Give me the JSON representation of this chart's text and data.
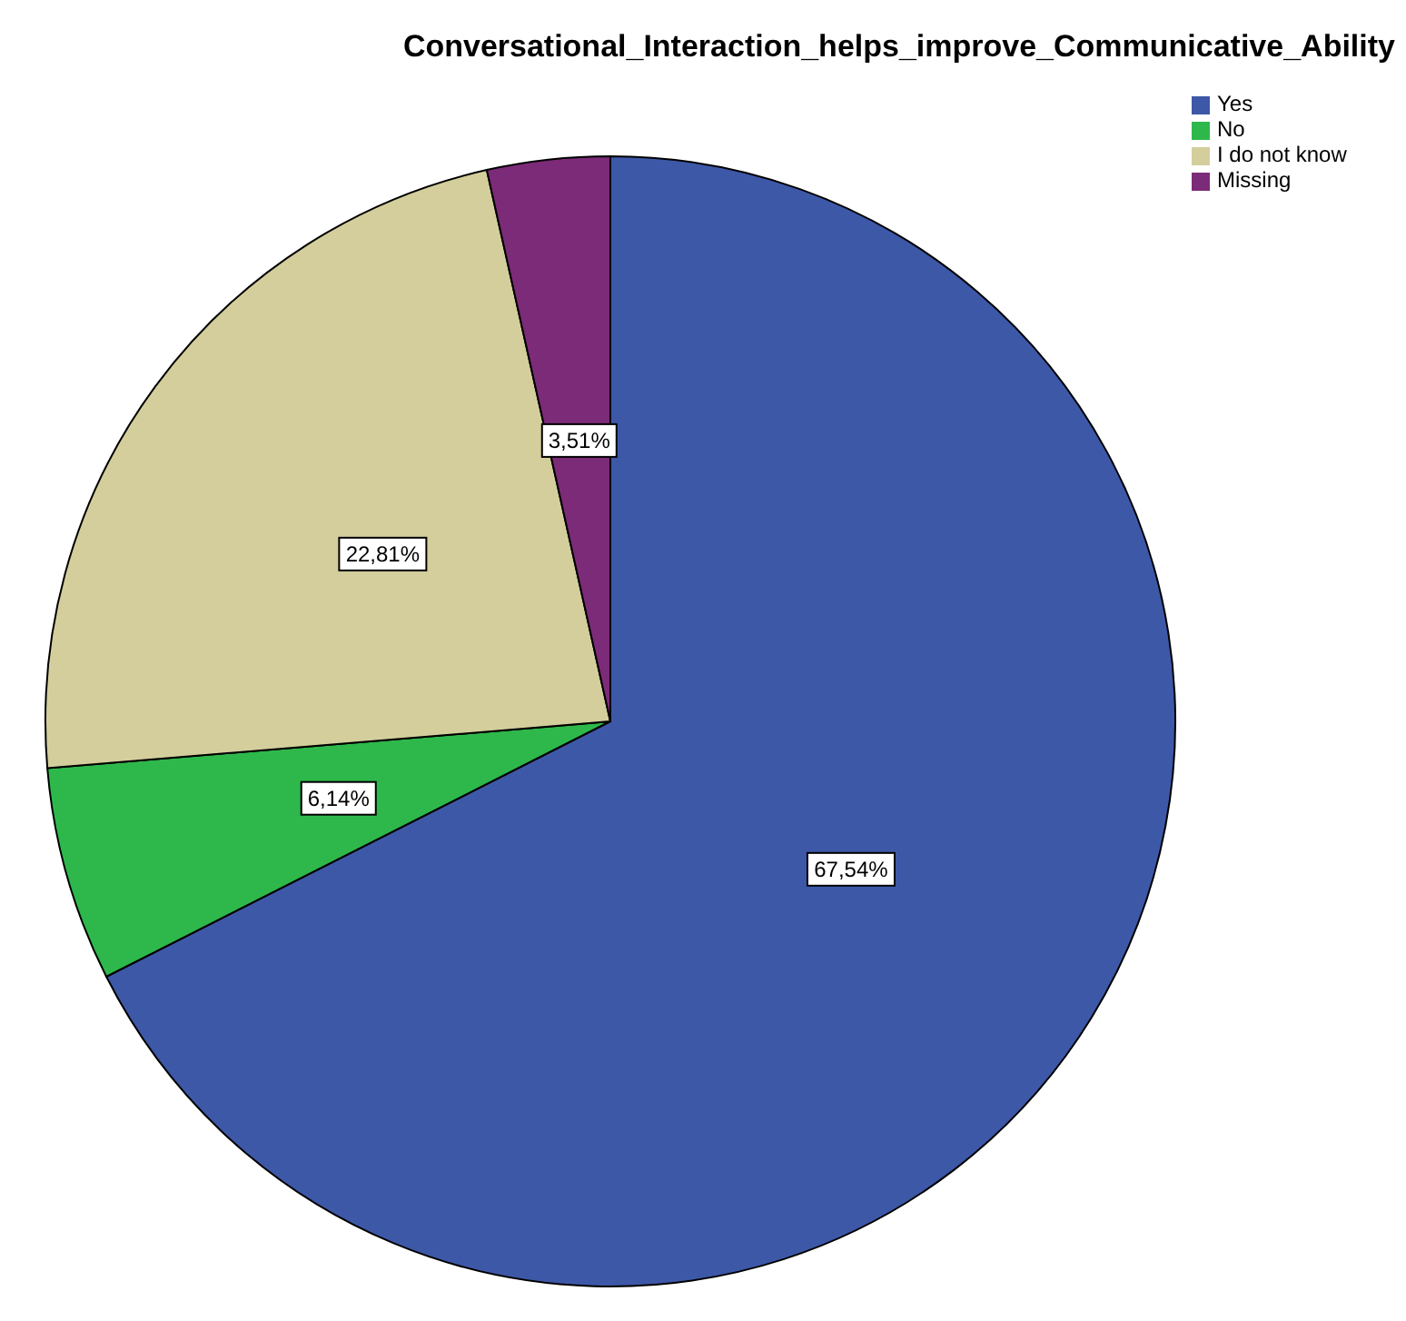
{
  "chart_data": {
    "type": "pie",
    "title": "Conversational_Interaction_helps_improve_Communicative_Ability",
    "categories": [
      "Yes",
      "No",
      "I do not know",
      "Missing"
    ],
    "values": [
      67.54,
      6.14,
      22.81,
      3.51
    ],
    "colors": [
      "#3e58a8",
      "#2eb84b",
      "#d3ce9b",
      "#7c2b78"
    ],
    "value_labels": [
      "67,54%",
      "6,14%",
      "22,81%",
      "3,51%"
    ],
    "legend": "top right"
  }
}
